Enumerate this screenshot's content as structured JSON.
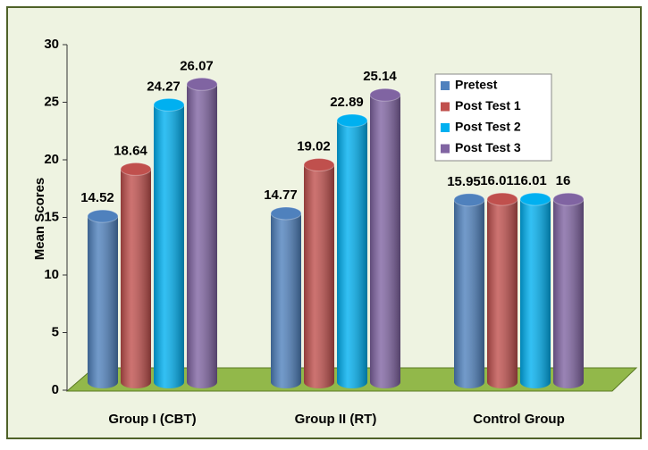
{
  "chart_data": {
    "type": "bar",
    "y_label": "Mean Scores",
    "categories": [
      "Group I (CBT)",
      "Group II (RT)",
      "Control Group"
    ],
    "series": [
      {
        "name": "Pretest",
        "color": "#4f81bd",
        "values": [
          14.52,
          14.77,
          15.95
        ]
      },
      {
        "name": "Post Test 1",
        "color": "#c0504d",
        "values": [
          18.64,
          19.02,
          16.01
        ]
      },
      {
        "name": "Post Test 2",
        "color": "#00b0f0",
        "values": [
          24.27,
          22.89,
          16.01
        ]
      },
      {
        "name": "Post Test 3",
        "color": "#8064a2",
        "values": [
          26.07,
          25.14,
          16
        ]
      }
    ],
    "ylim": [
      0,
      30
    ],
    "yticks": [
      0,
      5,
      10,
      15,
      20,
      25,
      30
    ],
    "legend": "upper right",
    "grid": false
  }
}
